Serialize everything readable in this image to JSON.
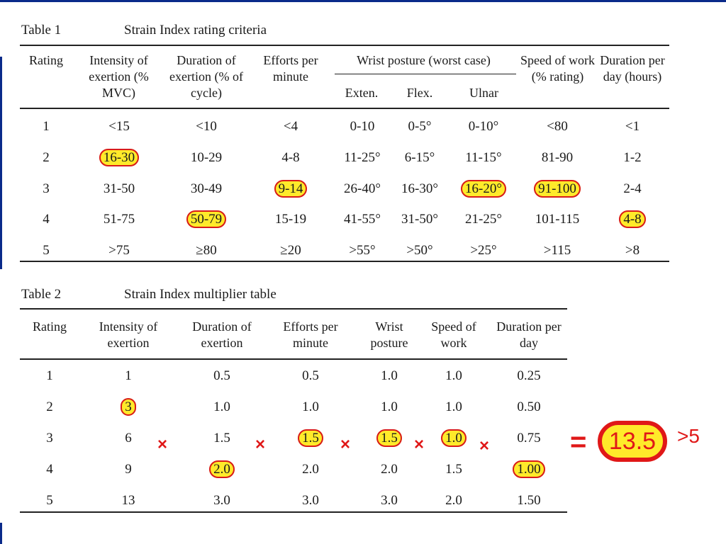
{
  "table1": {
    "number": "Table 1",
    "title": "Strain Index rating criteria",
    "headers": {
      "rating": "Rating",
      "intensity": "Intensity of exertion (% MVC)",
      "duration": "Duration of exertion (% of cycle)",
      "efforts": "Efforts per minute",
      "wrist": "Wrist posture (worst case)",
      "exten": "Exten.",
      "flex": "Flex.",
      "ulnar": "Ulnar",
      "speed": "Speed of work (% rating)",
      "perday": "Duration per day (hours)"
    },
    "rows": [
      [
        "1",
        "<15",
        "<10",
        "<4",
        "0-10",
        "0-5°",
        "0-10°",
        "<80",
        "<1"
      ],
      [
        "2",
        "16-30",
        "10-29",
        "4-8",
        "11-25°",
        "6-15°",
        "11-15°",
        "81-90",
        "1-2"
      ],
      [
        "3",
        "31-50",
        "30-49",
        "9-14",
        "26-40°",
        "16-30°",
        "16-20°",
        "91-100",
        "2-4"
      ],
      [
        "4",
        "51-75",
        "50-79",
        "15-19",
        "41-55°",
        "31-50°",
        "21-25°",
        "101-115",
        "4-8"
      ],
      [
        "5",
        ">75",
        "≥80",
        "≥20",
        ">55°",
        ">50°",
        ">25°",
        ">115",
        ">8"
      ]
    ],
    "circled": [
      [
        1,
        1
      ],
      [
        2,
        3
      ],
      [
        2,
        6
      ],
      [
        2,
        7
      ],
      [
        3,
        2
      ],
      [
        3,
        8
      ]
    ]
  },
  "table2": {
    "number": "Table 2",
    "title": "Strain Index multiplier table",
    "headers": {
      "rating": "Rating",
      "intensity": "Intensity of exertion",
      "duration": "Duration of exertion",
      "efforts": "Efforts per minute",
      "wrist": "Wrist posture",
      "speed": "Speed of work",
      "perday": "Duration per day"
    },
    "rows": [
      [
        "1",
        "1",
        "0.5",
        "0.5",
        "1.0",
        "1.0",
        "0.25"
      ],
      [
        "2",
        "3",
        "1.0",
        "1.0",
        "1.0",
        "1.0",
        "0.50"
      ],
      [
        "3",
        "6",
        "1.5",
        "1.5",
        "1.5",
        "1.0",
        "0.75"
      ],
      [
        "4",
        "9",
        "2.0",
        "2.0",
        "2.0",
        "1.5",
        "1.00"
      ],
      [
        "5",
        "13",
        "3.0",
        "3.0",
        "3.0",
        "2.0",
        "1.50"
      ]
    ],
    "circled": [
      [
        1,
        1
      ],
      [
        3,
        2
      ],
      [
        2,
        3
      ],
      [
        2,
        4
      ],
      [
        2,
        5
      ],
      [
        3,
        6
      ]
    ]
  },
  "annotation": {
    "multiply": "×",
    "equals": "=",
    "result": "13.5",
    "threshold": ">5"
  },
  "colors": {
    "highlight": "#ffea2a",
    "ink": "#e01818",
    "frame": "#0a2a8a"
  }
}
